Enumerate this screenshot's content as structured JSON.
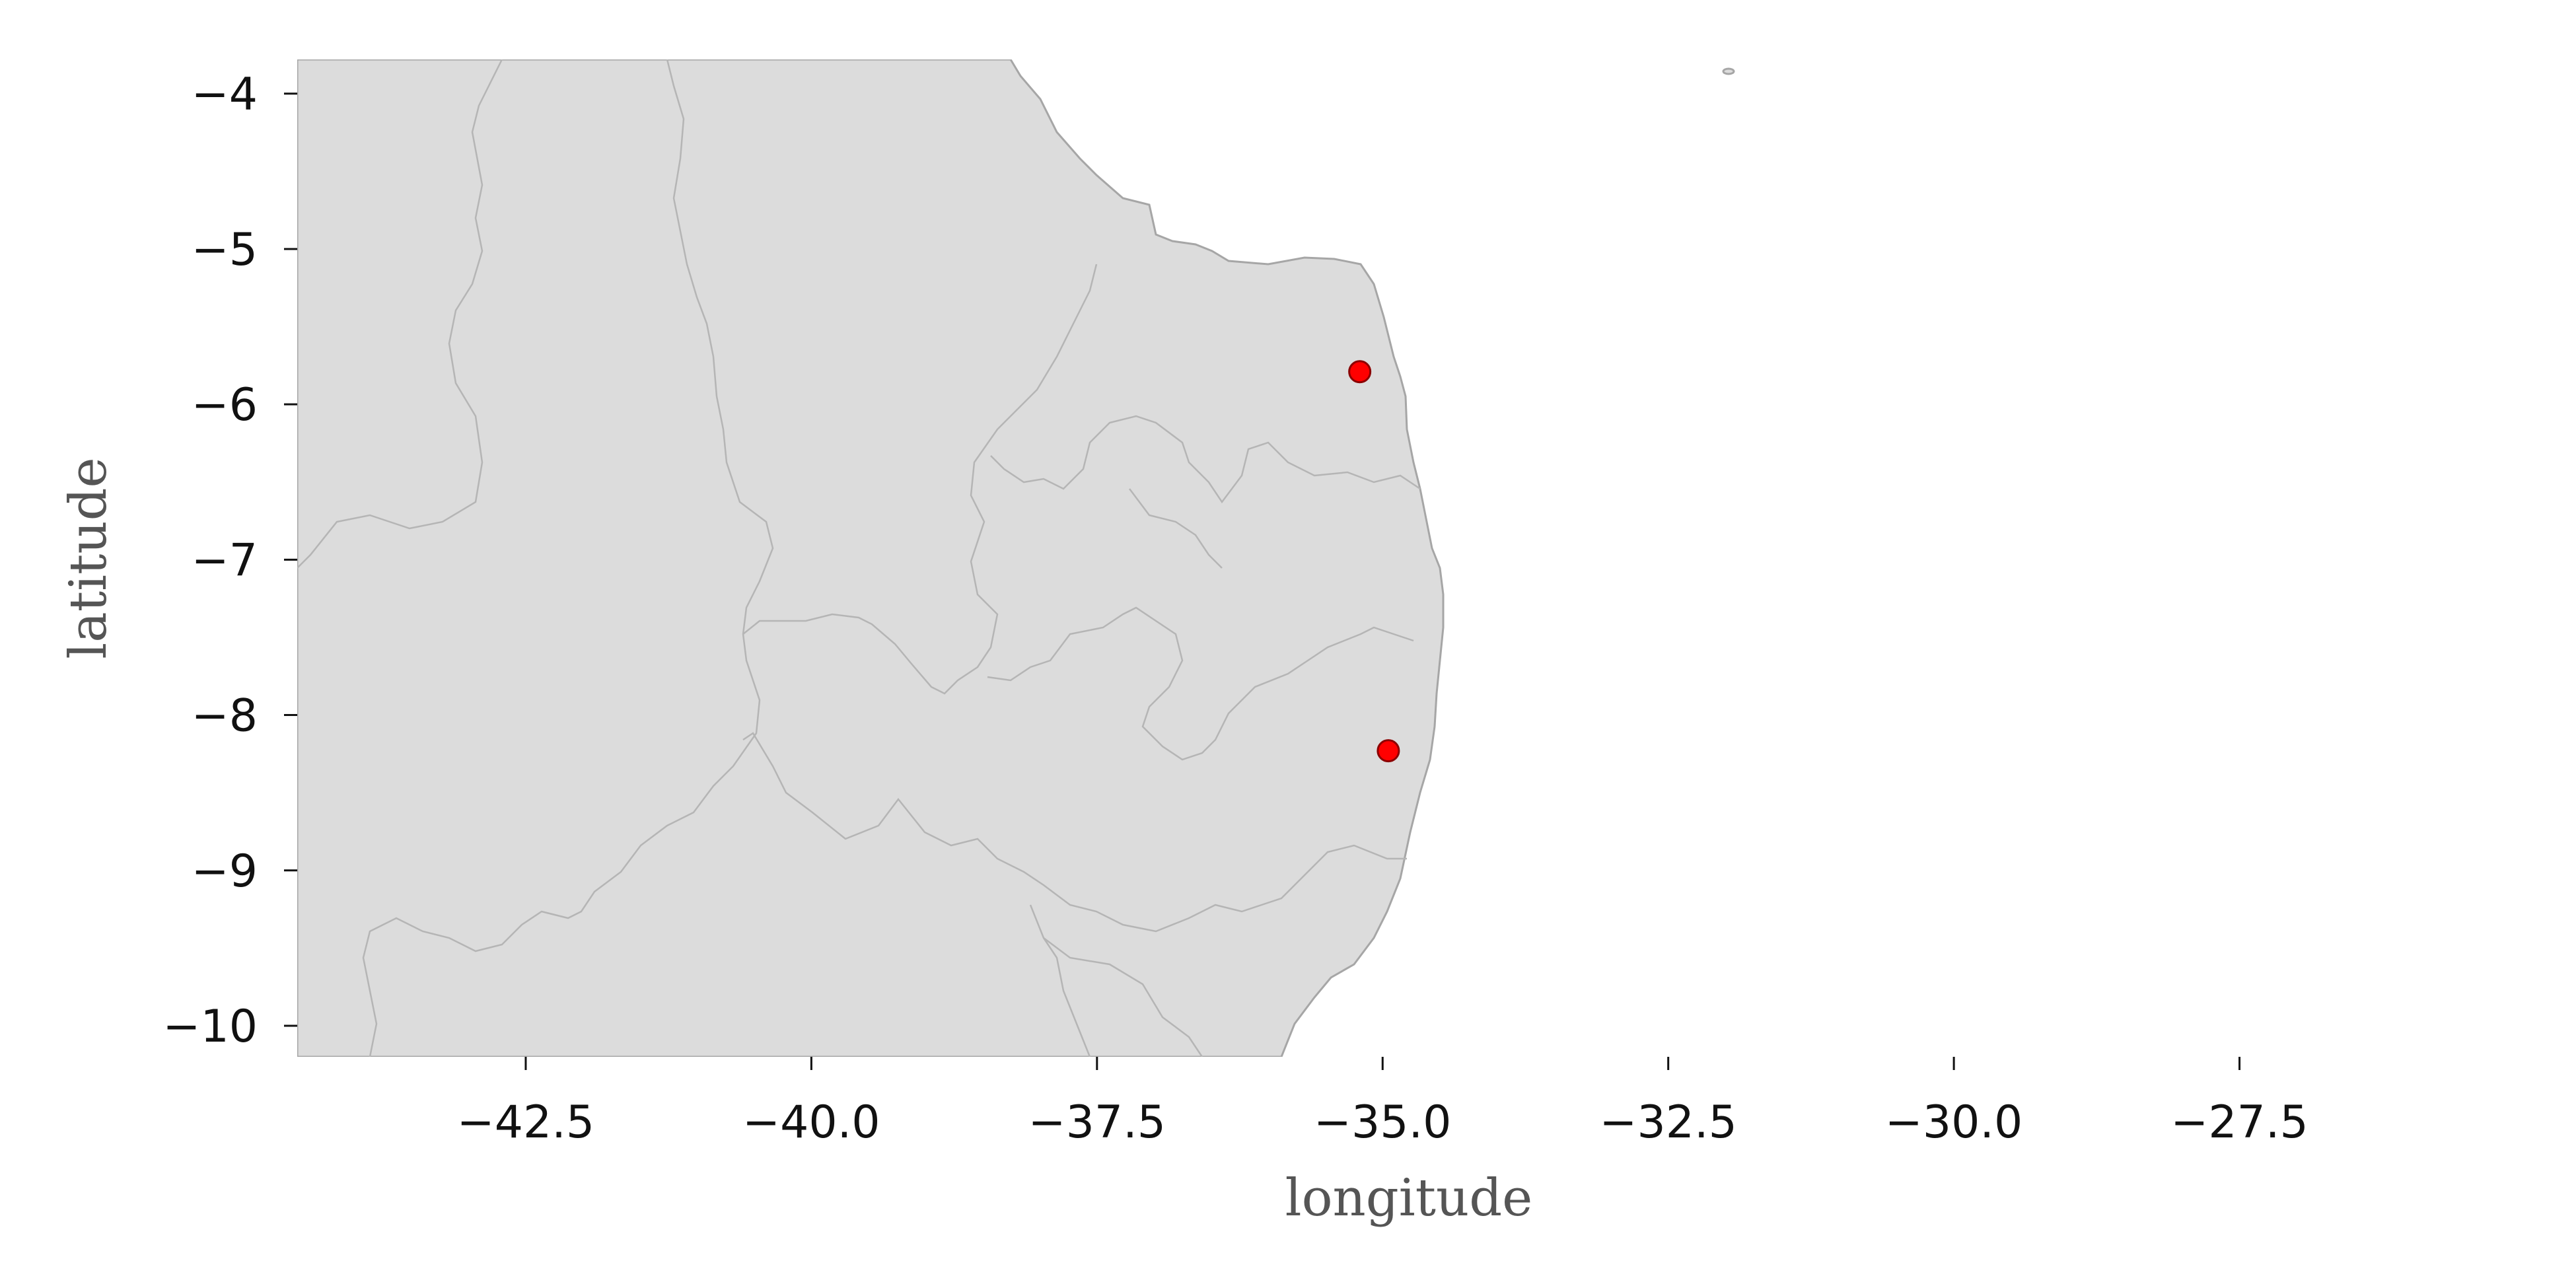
{
  "map": {
    "xlabel": "longitude",
    "ylabel": "latitude",
    "xlim": [
      -44.5,
      -26.0
    ],
    "ylim": [
      -10.2,
      -3.78
    ],
    "x_ticks": [
      "−42.5",
      "−40.0",
      "−37.5",
      "−35.0",
      "−32.5",
      "−30.0",
      "−27.5"
    ],
    "y_ticks": [
      "−4",
      "−5",
      "−6",
      "−7",
      "−8",
      "−9",
      "−10"
    ],
    "land_color": "#dcdcdc",
    "coastline_color": "#a6a6a6",
    "border_color": "#b5b5b5",
    "marker_color": "#ff0000",
    "marker_edge_color": "#8b0000",
    "markers": [
      {
        "lon": -35.2,
        "lat": -5.79
      },
      {
        "lon": -34.95,
        "lat": -8.23
      }
    ]
  }
}
